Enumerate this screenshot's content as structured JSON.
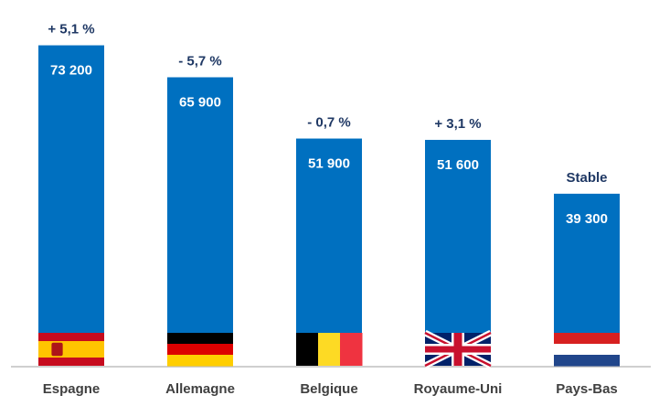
{
  "chart_data": {
    "type": "bar",
    "categories": [
      "Espagne",
      "Allemagne",
      "Belgique",
      "Royaume-Uni",
      "Pays-Bas"
    ],
    "values": [
      73200,
      65900,
      51900,
      51600,
      39300
    ],
    "value_labels": [
      "73 200",
      "65 900",
      "51 900",
      "51 600",
      "39 300"
    ],
    "change_labels": [
      "+ 5,1 %",
      "- 5,7  %",
      "- 0,7  %",
      "+ 3,1  %",
      "Stable"
    ],
    "flags": [
      "spain-flag",
      "germany-flag",
      "belgium-flag",
      "uk-flag",
      "netherlands-flag"
    ],
    "ylim": [
      0,
      80000
    ],
    "grid": false,
    "legend": "none",
    "colors": {
      "bar": "#0070c0",
      "value_text": "#ffffff",
      "change_text": "#1f3864",
      "category_text": "#404040",
      "axis": "#bfbfbf"
    }
  }
}
